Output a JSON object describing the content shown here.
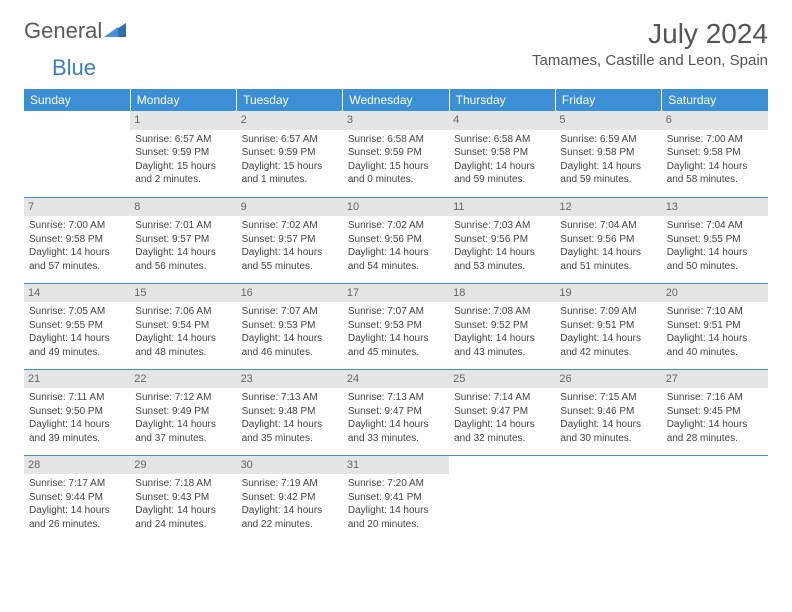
{
  "logo": {
    "word1": "General",
    "word2": "Blue"
  },
  "header": {
    "month_year": "July 2024",
    "location": "Tamames, Castille and Leon, Spain"
  },
  "weekdays": [
    "Sunday",
    "Monday",
    "Tuesday",
    "Wednesday",
    "Thursday",
    "Friday",
    "Saturday"
  ],
  "colors": {
    "header_bg": "#3b8fd4",
    "header_text": "#ffffff",
    "border": "#3b8fd4",
    "daynum_bg": "#e5e5e5",
    "logo_blue": "#3b7fc4"
  },
  "cells": [
    {
      "day": "",
      "sunrise": "",
      "sunset": "",
      "daylight1": "",
      "daylight2": ""
    },
    {
      "day": "1",
      "sunrise": "Sunrise: 6:57 AM",
      "sunset": "Sunset: 9:59 PM",
      "daylight1": "Daylight: 15 hours",
      "daylight2": "and 2 minutes."
    },
    {
      "day": "2",
      "sunrise": "Sunrise: 6:57 AM",
      "sunset": "Sunset: 9:59 PM",
      "daylight1": "Daylight: 15 hours",
      "daylight2": "and 1 minutes."
    },
    {
      "day": "3",
      "sunrise": "Sunrise: 6:58 AM",
      "sunset": "Sunset: 9:59 PM",
      "daylight1": "Daylight: 15 hours",
      "daylight2": "and 0 minutes."
    },
    {
      "day": "4",
      "sunrise": "Sunrise: 6:58 AM",
      "sunset": "Sunset: 9:58 PM",
      "daylight1": "Daylight: 14 hours",
      "daylight2": "and 59 minutes."
    },
    {
      "day": "5",
      "sunrise": "Sunrise: 6:59 AM",
      "sunset": "Sunset: 9:58 PM",
      "daylight1": "Daylight: 14 hours",
      "daylight2": "and 59 minutes."
    },
    {
      "day": "6",
      "sunrise": "Sunrise: 7:00 AM",
      "sunset": "Sunset: 9:58 PM",
      "daylight1": "Daylight: 14 hours",
      "daylight2": "and 58 minutes."
    },
    {
      "day": "7",
      "sunrise": "Sunrise: 7:00 AM",
      "sunset": "Sunset: 9:58 PM",
      "daylight1": "Daylight: 14 hours",
      "daylight2": "and 57 minutes."
    },
    {
      "day": "8",
      "sunrise": "Sunrise: 7:01 AM",
      "sunset": "Sunset: 9:57 PM",
      "daylight1": "Daylight: 14 hours",
      "daylight2": "and 56 minutes."
    },
    {
      "day": "9",
      "sunrise": "Sunrise: 7:02 AM",
      "sunset": "Sunset: 9:57 PM",
      "daylight1": "Daylight: 14 hours",
      "daylight2": "and 55 minutes."
    },
    {
      "day": "10",
      "sunrise": "Sunrise: 7:02 AM",
      "sunset": "Sunset: 9:56 PM",
      "daylight1": "Daylight: 14 hours",
      "daylight2": "and 54 minutes."
    },
    {
      "day": "11",
      "sunrise": "Sunrise: 7:03 AM",
      "sunset": "Sunset: 9:56 PM",
      "daylight1": "Daylight: 14 hours",
      "daylight2": "and 53 minutes."
    },
    {
      "day": "12",
      "sunrise": "Sunrise: 7:04 AM",
      "sunset": "Sunset: 9:56 PM",
      "daylight1": "Daylight: 14 hours",
      "daylight2": "and 51 minutes."
    },
    {
      "day": "13",
      "sunrise": "Sunrise: 7:04 AM",
      "sunset": "Sunset: 9:55 PM",
      "daylight1": "Daylight: 14 hours",
      "daylight2": "and 50 minutes."
    },
    {
      "day": "14",
      "sunrise": "Sunrise: 7:05 AM",
      "sunset": "Sunset: 9:55 PM",
      "daylight1": "Daylight: 14 hours",
      "daylight2": "and 49 minutes."
    },
    {
      "day": "15",
      "sunrise": "Sunrise: 7:06 AM",
      "sunset": "Sunset: 9:54 PM",
      "daylight1": "Daylight: 14 hours",
      "daylight2": "and 48 minutes."
    },
    {
      "day": "16",
      "sunrise": "Sunrise: 7:07 AM",
      "sunset": "Sunset: 9:53 PM",
      "daylight1": "Daylight: 14 hours",
      "daylight2": "and 46 minutes."
    },
    {
      "day": "17",
      "sunrise": "Sunrise: 7:07 AM",
      "sunset": "Sunset: 9:53 PM",
      "daylight1": "Daylight: 14 hours",
      "daylight2": "and 45 minutes."
    },
    {
      "day": "18",
      "sunrise": "Sunrise: 7:08 AM",
      "sunset": "Sunset: 9:52 PM",
      "daylight1": "Daylight: 14 hours",
      "daylight2": "and 43 minutes."
    },
    {
      "day": "19",
      "sunrise": "Sunrise: 7:09 AM",
      "sunset": "Sunset: 9:51 PM",
      "daylight1": "Daylight: 14 hours",
      "daylight2": "and 42 minutes."
    },
    {
      "day": "20",
      "sunrise": "Sunrise: 7:10 AM",
      "sunset": "Sunset: 9:51 PM",
      "daylight1": "Daylight: 14 hours",
      "daylight2": "and 40 minutes."
    },
    {
      "day": "21",
      "sunrise": "Sunrise: 7:11 AM",
      "sunset": "Sunset: 9:50 PM",
      "daylight1": "Daylight: 14 hours",
      "daylight2": "and 39 minutes."
    },
    {
      "day": "22",
      "sunrise": "Sunrise: 7:12 AM",
      "sunset": "Sunset: 9:49 PM",
      "daylight1": "Daylight: 14 hours",
      "daylight2": "and 37 minutes."
    },
    {
      "day": "23",
      "sunrise": "Sunrise: 7:13 AM",
      "sunset": "Sunset: 9:48 PM",
      "daylight1": "Daylight: 14 hours",
      "daylight2": "and 35 minutes."
    },
    {
      "day": "24",
      "sunrise": "Sunrise: 7:13 AM",
      "sunset": "Sunset: 9:47 PM",
      "daylight1": "Daylight: 14 hours",
      "daylight2": "and 33 minutes."
    },
    {
      "day": "25",
      "sunrise": "Sunrise: 7:14 AM",
      "sunset": "Sunset: 9:47 PM",
      "daylight1": "Daylight: 14 hours",
      "daylight2": "and 32 minutes."
    },
    {
      "day": "26",
      "sunrise": "Sunrise: 7:15 AM",
      "sunset": "Sunset: 9:46 PM",
      "daylight1": "Daylight: 14 hours",
      "daylight2": "and 30 minutes."
    },
    {
      "day": "27",
      "sunrise": "Sunrise: 7:16 AM",
      "sunset": "Sunset: 9:45 PM",
      "daylight1": "Daylight: 14 hours",
      "daylight2": "and 28 minutes."
    },
    {
      "day": "28",
      "sunrise": "Sunrise: 7:17 AM",
      "sunset": "Sunset: 9:44 PM",
      "daylight1": "Daylight: 14 hours",
      "daylight2": "and 26 minutes."
    },
    {
      "day": "29",
      "sunrise": "Sunrise: 7:18 AM",
      "sunset": "Sunset: 9:43 PM",
      "daylight1": "Daylight: 14 hours",
      "daylight2": "and 24 minutes."
    },
    {
      "day": "30",
      "sunrise": "Sunrise: 7:19 AM",
      "sunset": "Sunset: 9:42 PM",
      "daylight1": "Daylight: 14 hours",
      "daylight2": "and 22 minutes."
    },
    {
      "day": "31",
      "sunrise": "Sunrise: 7:20 AM",
      "sunset": "Sunset: 9:41 PM",
      "daylight1": "Daylight: 14 hours",
      "daylight2": "and 20 minutes."
    },
    {
      "day": "",
      "sunrise": "",
      "sunset": "",
      "daylight1": "",
      "daylight2": ""
    },
    {
      "day": "",
      "sunrise": "",
      "sunset": "",
      "daylight1": "",
      "daylight2": ""
    },
    {
      "day": "",
      "sunrise": "",
      "sunset": "",
      "daylight1": "",
      "daylight2": ""
    }
  ]
}
